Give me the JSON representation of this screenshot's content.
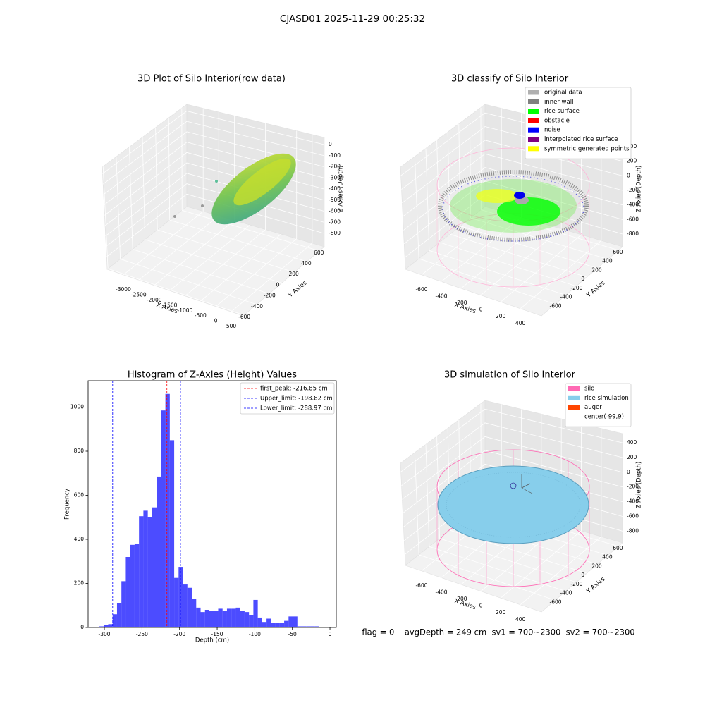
{
  "title": "CJASD01 2025-11-29 00:25:32",
  "footer": "flag = 0    avgDepth = 249 cm  sv1 = 700~2300  sv2 = 700~2300",
  "chart_data": [
    {
      "type": "scatter3d",
      "title": "3D Plot of Silo Interior(row data)",
      "xlabel": "X Axies",
      "ylabel": "Y Axies",
      "zlabel": "Z Axies (Depth)",
      "xlim": [
        -3525,
        889
      ],
      "ylim": [
        -613,
        677
      ],
      "zlim": [
        -920,
        64
      ],
      "xticks": [
        -3000,
        -2500,
        -2000,
        -1500,
        -1000,
        -500,
        0,
        500
      ],
      "yticks": [
        -600,
        -400,
        -200,
        0,
        200,
        400,
        600
      ],
      "zticks": [
        0,
        -100,
        -200,
        -300,
        -400,
        -500,
        -600,
        -700,
        -800
      ]
    },
    {
      "type": "scatter3d",
      "title": "3D classify of Silo Interior",
      "xlabel": "X Axies",
      "ylabel": "Y Axies",
      "zlabel": "Z Axies (Depth)",
      "xlim": [
        -764,
        613
      ],
      "ylim": [
        -861,
        677
      ],
      "zlim": [
        -974,
        526
      ],
      "xticks": [
        -600,
        -400,
        -200,
        0,
        200,
        400
      ],
      "yticks": [
        -600,
        -400,
        -200,
        0,
        200,
        400,
        600
      ],
      "zticks": [
        400,
        200,
        0,
        -200,
        -400,
        -600,
        -800
      ],
      "series": [
        {
          "name": "original data",
          "color": "#b0b0b0"
        },
        {
          "name": "inner wall",
          "color": "#808080"
        },
        {
          "name": "rice surface",
          "color": "#00ff00"
        },
        {
          "name": "obstacle",
          "color": "#ff0000"
        },
        {
          "name": "noise",
          "color": "#0000ff"
        },
        {
          "name": "interpolated rice surface",
          "color": "#800080"
        },
        {
          "name": "symmetric generated points",
          "color": "#ffff00"
        }
      ]
    },
    {
      "type": "histogram",
      "title": "Histogram of Z-Axies (Height) Values",
      "xlabel": "Depth (cm)",
      "ylabel": "Frequency",
      "color": "#0000ff",
      "alpha": 0.7,
      "bins": [
        -306.6,
        -300.75,
        -294.9,
        -289.05,
        -283.2,
        -277.35,
        -271.5,
        -265.65,
        -259.8,
        -253.95,
        -248.1,
        -242.25,
        -236.4,
        -230.55,
        -224.7,
        -218.85,
        -213.0,
        -207.15,
        -201.3,
        -195.45,
        -189.6,
        -183.75,
        -177.9,
        -172.05,
        -166.2,
        -160.35,
        -154.5,
        -148.65,
        -142.8,
        -136.95,
        -131.1,
        -125.25,
        -119.4,
        -113.55,
        -107.7,
        -101.85,
        -96.0,
        -90.15,
        -84.3,
        -78.45,
        -72.6,
        -66.75,
        -60.9,
        -55.05,
        -49.2,
        -43.35,
        -37.5,
        -31.65,
        -25.8,
        -19.95,
        -14.1
      ],
      "values": [
        5,
        10,
        15,
        60,
        110,
        210,
        320,
        375,
        380,
        505,
        530,
        500,
        545,
        685,
        985,
        1060,
        850,
        225,
        275,
        195,
        180,
        130,
        90,
        70,
        80,
        75,
        75,
        85,
        75,
        85,
        85,
        90,
        75,
        70,
        55,
        125,
        45,
        25,
        40,
        20,
        20,
        20,
        30,
        50,
        50,
        5,
        5,
        5,
        5,
        5
      ],
      "xlim": [
        -321.6,
        8.4
      ],
      "ylim": [
        0,
        1120
      ],
      "xticks": [
        -300,
        -250,
        -200,
        -150,
        -100,
        -50,
        0
      ],
      "yticks": [
        0,
        200,
        400,
        600,
        800,
        1000
      ],
      "vlines": [
        {
          "name": "first_peak: -216.85 cm",
          "value": -216.85,
          "color": "#ff0000"
        },
        {
          "name": "Upper_limit: -198.82 cm",
          "value": -198.82,
          "color": "#0000ff"
        },
        {
          "name": "Lower_limit: -288.97 cm",
          "value": -288.97,
          "color": "#0000ff"
        }
      ]
    },
    {
      "type": "scatter3d",
      "title": "3D simulation of Silo Interior",
      "xlabel": "X Axies",
      "ylabel": "Y Axies",
      "zlabel": "Z Axies (Depth)",
      "xlim": [
        -764,
        613
      ],
      "ylim": [
        -861,
        677
      ],
      "zlim": [
        -960,
        526
      ],
      "xticks": [
        -600,
        -400,
        -200,
        0,
        200,
        400
      ],
      "yticks": [
        -600,
        -400,
        -200,
        0,
        200,
        400,
        600
      ],
      "zticks": [
        400,
        200,
        0,
        -200,
        -400,
        -600,
        -800
      ],
      "series": [
        {
          "name": "silo",
          "color": "#ff69b4"
        },
        {
          "name": "rice simulation",
          "color": "#87ceeb"
        },
        {
          "name": "auger",
          "color": "#ff4500"
        },
        {
          "name": "center(-99,9)",
          "color": "#ffffff"
        }
      ]
    }
  ]
}
